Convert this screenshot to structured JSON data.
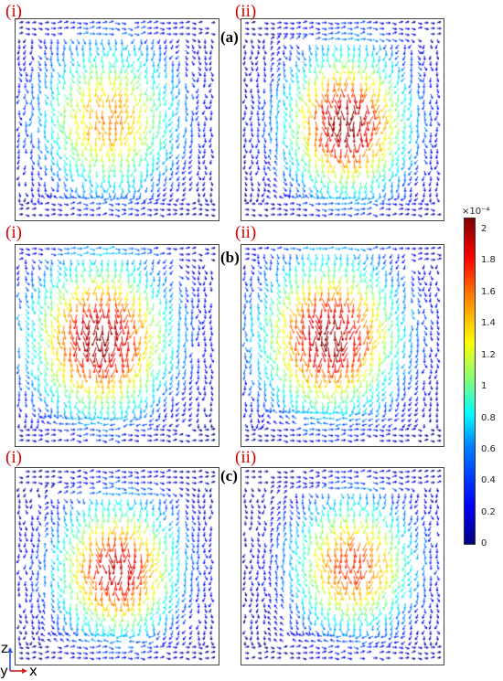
{
  "rows": [
    {
      "label": "(a)",
      "panels": [
        {
          "label": "(i)"
        },
        {
          "label": "(ii)"
        }
      ]
    },
    {
      "label": "(b)",
      "panels": [
        {
          "label": "(i)"
        },
        {
          "label": "(ii)"
        }
      ]
    },
    {
      "label": "(c)",
      "panels": [
        {
          "label": "(i)"
        },
        {
          "label": "(ii)"
        }
      ]
    }
  ],
  "colorbar": {
    "exponent_label": "×10⁻⁴",
    "ticks": [
      "2",
      "1.8",
      "1.6",
      "1.4",
      "1.2",
      "1",
      "0.8",
      "0.6",
      "0.4",
      "0.2",
      "0"
    ],
    "colors": [
      "#00007f",
      "#0000ff",
      "#0080ff",
      "#00ffff",
      "#7fff7f",
      "#ffff00",
      "#ff8000",
      "#ff0000",
      "#7f0000"
    ]
  },
  "axes": {
    "z_label": "z",
    "y_label": "y",
    "x_label": "x",
    "z_color": "#3355cc",
    "x_color": "#cc2222"
  }
}
